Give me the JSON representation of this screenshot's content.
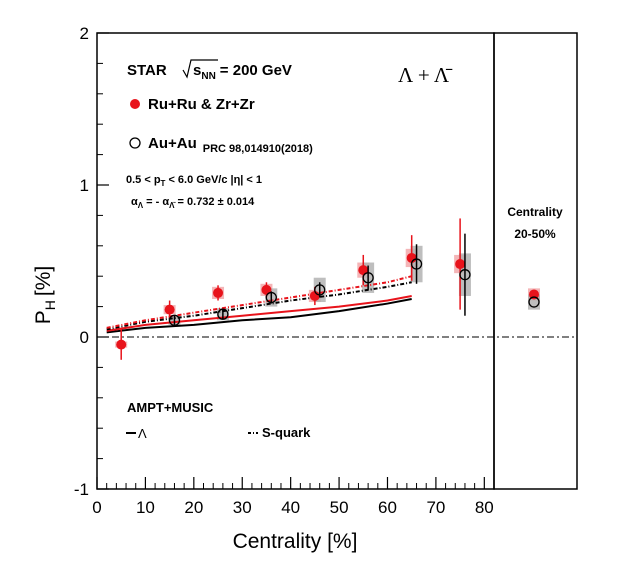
{
  "chart_data": [
    {
      "type": "scatter",
      "title": "",
      "xlabel": "Centrality [%]",
      "ylabel": "P",
      "ylabel_sub": "H",
      "ylabel_unit": "[%]",
      "xlim": [
        0,
        82
      ],
      "ylim": [
        -1,
        2
      ],
      "x_ticks": [
        0,
        10,
        20,
        30,
        40,
        50,
        60,
        70,
        80
      ],
      "y_ticks": [
        -1,
        0,
        1,
        2
      ],
      "grid": false,
      "zero_line": true,
      "series": [
        {
          "name": "Ru+Ru & Zr+Zr",
          "marker": "filled-circle",
          "color": "#e8131b",
          "x": [
            5,
            15,
            25,
            35,
            45,
            55,
            65,
            75
          ],
          "y": [
            -0.05,
            0.18,
            0.29,
            0.31,
            0.27,
            0.44,
            0.52,
            0.48
          ],
          "stat_err": [
            0.1,
            0.06,
            0.05,
            0.05,
            0.06,
            0.1,
            0.15,
            0.3
          ],
          "sys_err": [
            0.02,
            0.03,
            0.04,
            0.04,
            0.04,
            0.05,
            0.06,
            0.06
          ]
        },
        {
          "name": "Au+Au",
          "marker": "open-circle",
          "color": "#000000",
          "x": [
            16,
            26,
            36,
            46,
            56,
            66,
            76
          ],
          "y": [
            0.11,
            0.15,
            0.26,
            0.31,
            0.39,
            0.48,
            0.41
          ],
          "stat_err": [
            0.03,
            0.03,
            0.04,
            0.05,
            0.08,
            0.13,
            0.27
          ],
          "sys_err": [
            0.03,
            0.04,
            0.06,
            0.08,
            0.1,
            0.12,
            0.14
          ]
        },
        {
          "name": "Λ",
          "style": "solid",
          "color": "#000000",
          "x": [
            2,
            10,
            20,
            30,
            40,
            50,
            60,
            65
          ],
          "y": [
            0.03,
            0.06,
            0.08,
            0.11,
            0.13,
            0.17,
            0.22,
            0.25
          ]
        },
        {
          "name": "",
          "style": "solid",
          "color": "#e8131b",
          "x": [
            2,
            10,
            20,
            30,
            40,
            50,
            60,
            65
          ],
          "y": [
            0.04,
            0.08,
            0.11,
            0.14,
            0.17,
            0.2,
            0.24,
            0.27
          ]
        },
        {
          "name": "S-quark",
          "style": "dash-dot",
          "color": "#000000",
          "x": [
            2,
            10,
            20,
            30,
            40,
            50,
            60,
            65
          ],
          "y": [
            0.05,
            0.1,
            0.14,
            0.19,
            0.24,
            0.28,
            0.33,
            0.36
          ]
        },
        {
          "name": "",
          "style": "dash-dot",
          "color": "#e8131b",
          "x": [
            2,
            10,
            20,
            30,
            40,
            50,
            60,
            65
          ],
          "y": [
            0.06,
            0.11,
            0.16,
            0.21,
            0.26,
            0.31,
            0.36,
            0.4
          ]
        }
      ],
      "annotations": {
        "experiment": "STAR",
        "energy_sqrt": "s",
        "energy_sub": "NN",
        "energy_value": "= 200 GeV",
        "particle": "Λ + Λ̄",
        "legend_ruzr": "Ru+Ru & Zr+Zr",
        "legend_auau": "Au+Au",
        "legend_auau_ref": "PRC 98,014910(2018)",
        "cuts": "0.5 < p",
        "cuts_sub": "T",
        "cuts_rest": "< 6.0 GeV/c  |η| < 1",
        "alpha_a": "α",
        "alpha_sub1": "Λ",
        "alpha_mid": " = - α",
        "alpha_sub2": "Λ̄",
        "alpha_rest": " = 0.732 ± 0.014",
        "model": "AMPT+MUSIC",
        "model_lambda": "Λ",
        "model_squark": "S-quark"
      }
    },
    {
      "type": "scatter",
      "title": "Centrality",
      "subtitle": "20-50%",
      "ylim": [
        -1,
        2
      ],
      "series": [
        {
          "name": "Ru+Ru & Zr+Zr",
          "marker": "filled-circle",
          "color": "#e8131b",
          "y": 0.28,
          "sys_err": 0.04
        },
        {
          "name": "Au+Au",
          "marker": "open-circle",
          "color": "#000000",
          "y": 0.23,
          "sys_err": 0.05
        }
      ]
    }
  ]
}
